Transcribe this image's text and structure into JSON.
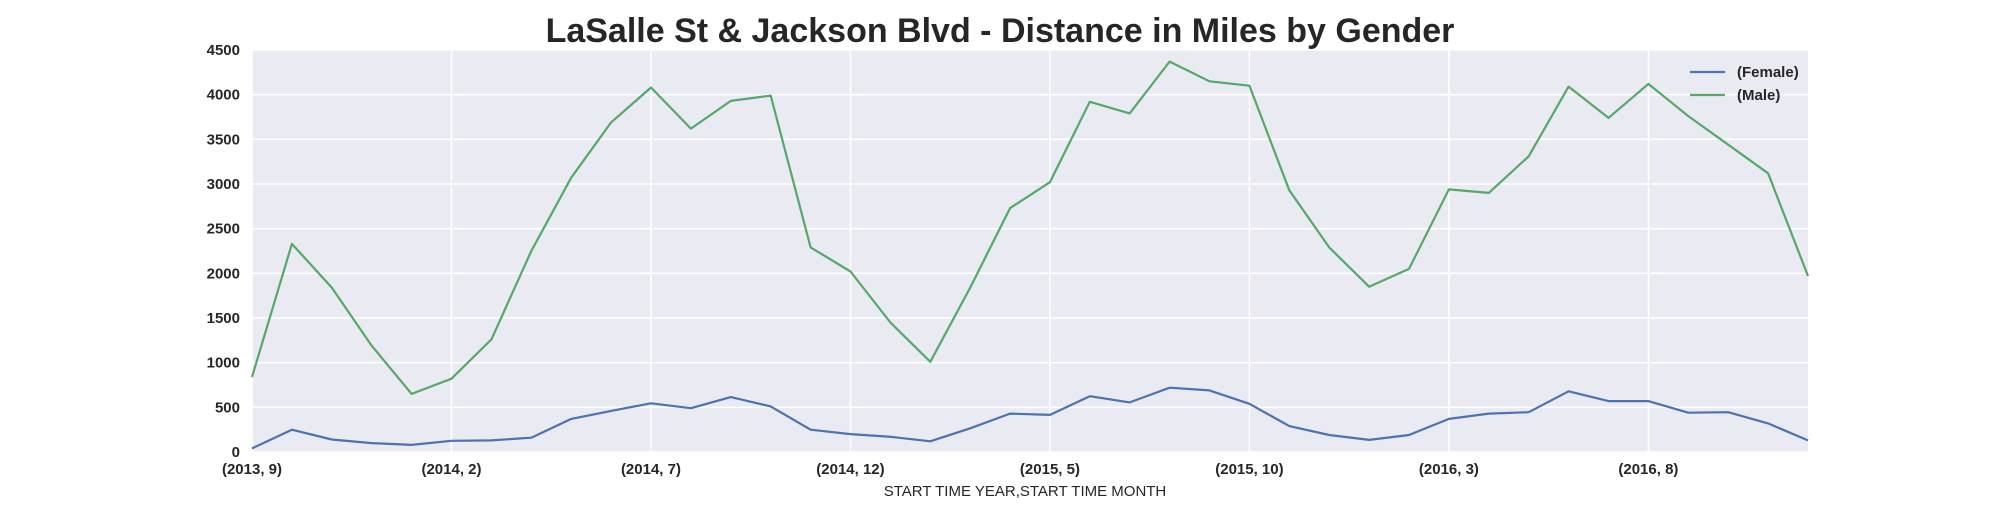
{
  "chart_data": {
    "type": "line",
    "title": "LaSalle St & Jackson Blvd - Distance in Miles by Gender",
    "xlabel": "START TIME YEAR,START TIME MONTH",
    "ylabel": "",
    "ylim": [
      0,
      4500
    ],
    "yticks": [
      0,
      500,
      1000,
      1500,
      2000,
      2500,
      3000,
      3500,
      4000,
      4500
    ],
    "grid": true,
    "legend_position": "top-right",
    "x": [
      "(2013, 9)",
      "(2013, 10)",
      "(2013, 11)",
      "(2013, 12)",
      "(2014, 1)",
      "(2014, 2)",
      "(2014, 3)",
      "(2014, 4)",
      "(2014, 5)",
      "(2014, 6)",
      "(2014, 7)",
      "(2014, 8)",
      "(2014, 9)",
      "(2014, 10)",
      "(2014, 11)",
      "(2014, 12)",
      "(2015, 1)",
      "(2015, 2)",
      "(2015, 3)",
      "(2015, 4)",
      "(2015, 5)",
      "(2015, 6)",
      "(2015, 7)",
      "(2015, 8)",
      "(2015, 9)",
      "(2015, 10)",
      "(2015, 11)",
      "(2015, 12)",
      "(2016, 1)",
      "(2016, 2)",
      "(2016, 3)",
      "(2016, 4)",
      "(2016, 5)",
      "(2016, 6)",
      "(2016, 7)",
      "(2016, 8)",
      "(2016, 9)",
      "(2016, 10)",
      "(2016, 11)",
      "(2016, 12)"
    ],
    "xtick_labels": [
      "(2013, 9)",
      "(2014, 2)",
      "(2014, 7)",
      "(2014, 12)",
      "(2015, 5)",
      "(2015, 10)",
      "(2016, 3)",
      "(2016, 8)"
    ],
    "xtick_indices": [
      0,
      5,
      10,
      15,
      20,
      25,
      30,
      35
    ],
    "series": [
      {
        "name": "(Female)",
        "color": "#4c72b0",
        "values": [
          40,
          250,
          140,
          100,
          80,
          125,
          130,
          160,
          370,
          460,
          545,
          490,
          615,
          510,
          250,
          200,
          170,
          120,
          265,
          430,
          415,
          625,
          555,
          720,
          690,
          540,
          290,
          190,
          135,
          190,
          370,
          430,
          445,
          680,
          570,
          570,
          440,
          445,
          320,
          130
        ]
      },
      {
        "name": "(Male)",
        "color": "#55a868",
        "values": [
          840,
          2330,
          1840,
          1190,
          650,
          820,
          1260,
          2250,
          3070,
          3690,
          4080,
          3620,
          3930,
          3990,
          2290,
          2020,
          1450,
          1010,
          1840,
          2730,
          3020,
          3920,
          3790,
          4370,
          4150,
          4100,
          2930,
          2290,
          1850,
          2050,
          2940,
          2900,
          3310,
          4090,
          3740,
          4120,
          3760,
          3440,
          3120,
          1970
        ]
      }
    ]
  }
}
